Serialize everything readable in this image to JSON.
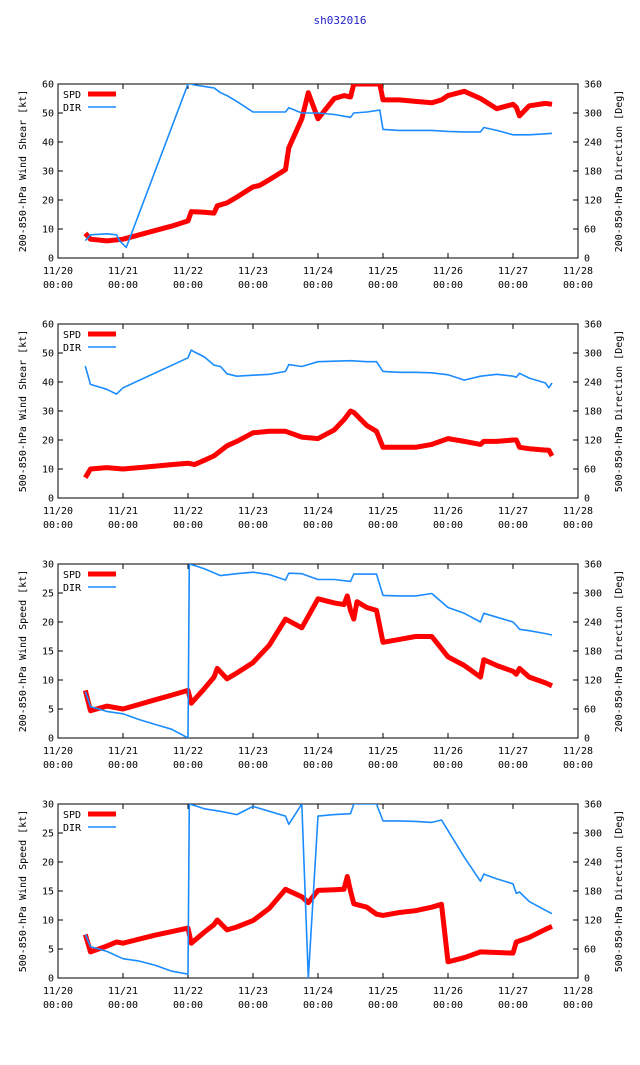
{
  "title": "sh032016",
  "colors": {
    "spd": "#ff0000",
    "dir": "#1a8cff",
    "title": "#2222cc"
  },
  "chart_data": [
    {
      "type": "line",
      "ylabel": "200-850-hPa Wind Shear [kt]",
      "y2label": "200-850-hPa Direction [Deg]",
      "ylim": [
        0,
        60
      ],
      "yticks": [
        0,
        10,
        20,
        30,
        40,
        50,
        60
      ],
      "y2lim": [
        0,
        360
      ],
      "y2ticks": [
        0,
        60,
        120,
        180,
        240,
        300,
        360
      ],
      "xlim": [
        0,
        8
      ],
      "xticks": [
        {
          "d": "11/20",
          "t": "00:00"
        },
        {
          "d": "11/21",
          "t": "00:00"
        },
        {
          "d": "11/22",
          "t": "00:00"
        },
        {
          "d": "11/23",
          "t": "00:00"
        },
        {
          "d": "11/24",
          "t": "00:00"
        },
        {
          "d": "11/25",
          "t": "00:00"
        },
        {
          "d": "11/26",
          "t": "00:00"
        },
        {
          "d": "11/27",
          "t": "00:00"
        },
        {
          "d": "11/28",
          "t": "00:00"
        }
      ],
      "legend": [
        "SPD",
        "DIR"
      ],
      "series": [
        {
          "name": "SPD",
          "axis": "left",
          "x": [
            0.42,
            0.5,
            0.75,
            1.0,
            1.25,
            1.5,
            1.75,
            2.0,
            2.05,
            2.25,
            2.4,
            2.45,
            2.6,
            2.75,
            3.0,
            3.1,
            3.25,
            3.5,
            3.55,
            3.75,
            3.85,
            4.0,
            4.25,
            4.4,
            4.5,
            4.55,
            4.6,
            4.95,
            5.0,
            5.25,
            5.5,
            5.75,
            5.9,
            6.0,
            6.25,
            6.5,
            6.75,
            7.0,
            7.05,
            7.1,
            7.25,
            7.5,
            7.6
          ],
          "values": [
            8.5,
            6.5,
            5.9,
            6.5,
            8,
            9.5,
            11,
            12.8,
            16,
            15.8,
            15.5,
            18,
            19,
            21,
            24.5,
            25,
            27,
            30.5,
            38,
            48,
            57,
            48,
            55,
            56,
            55.5,
            60,
            60,
            60,
            54.5,
            54.5,
            54,
            53.5,
            54.5,
            56,
            57.5,
            55,
            51.5,
            53,
            52,
            49,
            52.5,
            53.3,
            53
          ]
        },
        {
          "name": "DIR",
          "axis": "right",
          "x": [
            0.42,
            0.5,
            0.75,
            0.9,
            0.95,
            1.05,
            2.0,
            2.05,
            2.1,
            2.4,
            2.5,
            2.6,
            2.75,
            3.0,
            3.25,
            3.5,
            3.55,
            3.75,
            4.0,
            4.25,
            4.5,
            4.55,
            4.75,
            4.95,
            5.0,
            5.25,
            5.5,
            5.75,
            6.0,
            6.25,
            6.5,
            6.55,
            6.75,
            7.0,
            7.25,
            7.5,
            7.6
          ],
          "values": [
            36,
            48,
            50,
            48,
            35,
            22,
            360,
            360,
            358,
            352,
            342,
            336,
            324,
            302,
            302,
            302,
            311,
            300,
            300,
            297,
            291,
            300,
            302,
            306,
            266,
            264,
            264,
            264,
            262,
            261,
            261,
            270,
            264,
            255,
            255,
            257,
            258
          ]
        }
      ]
    },
    {
      "type": "line",
      "ylabel": "500-850-hPa Wind Shear [kt]",
      "y2label": "500-850-hPa Direction [Deg]",
      "ylim": [
        0,
        60
      ],
      "yticks": [
        0,
        10,
        20,
        30,
        40,
        50,
        60
      ],
      "y2lim": [
        0,
        360
      ],
      "y2ticks": [
        0,
        60,
        120,
        180,
        240,
        300,
        360
      ],
      "xlim": [
        0,
        8
      ],
      "xticks": [
        {
          "d": "11/20",
          "t": "00:00"
        },
        {
          "d": "11/21",
          "t": "00:00"
        },
        {
          "d": "11/22",
          "t": "00:00"
        },
        {
          "d": "11/23",
          "t": "00:00"
        },
        {
          "d": "11/24",
          "t": "00:00"
        },
        {
          "d": "11/25",
          "t": "00:00"
        },
        {
          "d": "11/26",
          "t": "00:00"
        },
        {
          "d": "11/27",
          "t": "00:00"
        },
        {
          "d": "11/28",
          "t": "00:00"
        }
      ],
      "legend": [
        "SPD",
        "DIR"
      ],
      "series": [
        {
          "name": "SPD",
          "axis": "left",
          "x": [
            0.42,
            0.5,
            0.75,
            1.0,
            1.25,
            1.5,
            1.75,
            2.0,
            2.1,
            2.25,
            2.4,
            2.6,
            2.75,
            3.0,
            3.25,
            3.5,
            3.75,
            4.0,
            4.25,
            4.4,
            4.5,
            4.55,
            4.75,
            4.9,
            5.0,
            5.25,
            5.5,
            5.75,
            6.0,
            6.25,
            6.5,
            6.55,
            6.75,
            7.0,
            7.05,
            7.1,
            7.25,
            7.5,
            7.55,
            7.6
          ],
          "values": [
            7,
            10,
            10.5,
            10,
            10.5,
            11,
            11.5,
            12,
            11.5,
            13,
            14.5,
            18,
            19.5,
            22.5,
            23,
            23,
            21,
            20.5,
            23.5,
            27,
            30,
            29.5,
            25,
            23,
            17.5,
            17.5,
            17.5,
            18.5,
            20.5,
            19.5,
            18.5,
            19.5,
            19.5,
            20,
            20,
            17.5,
            17,
            16.5,
            16.5,
            14.5
          ]
        },
        {
          "name": "DIR",
          "axis": "right",
          "x": [
            0.42,
            0.5,
            0.75,
            0.9,
            1.0,
            2.0,
            2.05,
            2.1,
            2.25,
            2.4,
            2.5,
            2.6,
            2.75,
            3.0,
            3.25,
            3.5,
            3.55,
            3.75,
            4.0,
            4.25,
            4.5,
            4.75,
            4.9,
            5.0,
            5.25,
            5.5,
            5.75,
            6.0,
            6.25,
            6.5,
            6.75,
            7.0,
            7.05,
            7.1,
            7.25,
            7.5,
            7.55,
            7.6
          ],
          "values": [
            273,
            235,
            225,
            215,
            228,
            290,
            306,
            302,
            292,
            275,
            272,
            257,
            252,
            254,
            256,
            262,
            276,
            272,
            282,
            283,
            284,
            282,
            282,
            262,
            260,
            260,
            259,
            255,
            244,
            252,
            256,
            252,
            250,
            258,
            248,
            238,
            228,
            238
          ]
        }
      ]
    },
    {
      "type": "line",
      "ylabel": "200-850-hPa Wind Speed [kt]",
      "y2label": "200-850-hPa Direction [Deg]",
      "ylim": [
        0,
        30
      ],
      "yticks": [
        0,
        5,
        10,
        15,
        20,
        25,
        30
      ],
      "y2lim": [
        0,
        360
      ],
      "y2ticks": [
        0,
        60,
        120,
        180,
        240,
        300,
        360
      ],
      "xlim": [
        0,
        8
      ],
      "xticks": [
        {
          "d": "11/20",
          "t": "00:00"
        },
        {
          "d": "11/21",
          "t": "00:00"
        },
        {
          "d": "11/22",
          "t": "00:00"
        },
        {
          "d": "11/23",
          "t": "00:00"
        },
        {
          "d": "11/24",
          "t": "00:00"
        },
        {
          "d": "11/25",
          "t": "00:00"
        },
        {
          "d": "11/26",
          "t": "00:00"
        },
        {
          "d": "11/27",
          "t": "00:00"
        },
        {
          "d": "11/28",
          "t": "00:00"
        }
      ],
      "legend": [
        "SPD",
        "DIR"
      ],
      "series": [
        {
          "name": "SPD",
          "axis": "left",
          "x": [
            0.42,
            0.5,
            0.75,
            1.0,
            1.25,
            1.5,
            1.75,
            2.0,
            2.05,
            2.25,
            2.4,
            2.45,
            2.6,
            2.75,
            3.0,
            3.25,
            3.5,
            3.75,
            4.0,
            4.25,
            4.4,
            4.45,
            4.5,
            4.55,
            4.6,
            4.75,
            4.9,
            5.0,
            5.25,
            5.5,
            5.75,
            6.0,
            6.25,
            6.5,
            6.55,
            6.75,
            7.0,
            7.05,
            7.1,
            7.25,
            7.5,
            7.6
          ],
          "values": [
            8.2,
            4.7,
            5.5,
            5,
            5.8,
            6.6,
            7.4,
            8.2,
            6,
            8.5,
            10.5,
            12,
            10.2,
            11.2,
            13,
            16,
            20.5,
            19,
            24,
            23.3,
            23,
            24.5,
            22,
            20.5,
            23.5,
            22.5,
            22,
            16.5,
            17,
            17.5,
            17.5,
            14,
            12.5,
            10.5,
            13.5,
            12.5,
            11.5,
            11,
            12,
            10.5,
            9.5,
            9
          ]
        },
        {
          "name": "DIR",
          "axis": "right",
          "x": [
            0.42,
            0.5,
            0.75,
            1.0,
            1.25,
            1.5,
            1.75,
            2.0,
            2.02,
            2.1,
            2.25,
            2.5,
            2.75,
            3.0,
            3.25,
            3.5,
            3.55,
            3.75,
            4.0,
            4.25,
            4.5,
            4.55,
            4.75,
            4.9,
            5.0,
            5.25,
            5.5,
            5.75,
            6.0,
            6.25,
            6.5,
            6.55,
            6.75,
            7.0,
            7.05,
            7.1,
            7.25,
            7.5,
            7.6
          ],
          "values": [
            96,
            65,
            55,
            50,
            38,
            28,
            18,
            0,
            360,
            357,
            350,
            336,
            340,
            343,
            338,
            327,
            341,
            340,
            328,
            328,
            324,
            339,
            339,
            339,
            295,
            294,
            294,
            299,
            270,
            258,
            240,
            258,
            250,
            240,
            233,
            225,
            222,
            216,
            213
          ]
        }
      ]
    },
    {
      "type": "line",
      "ylabel": "500-850-hPa Wind Speed [kt]",
      "y2label": "500-850-hPa Direction [Deg]",
      "ylim": [
        0,
        30
      ],
      "yticks": [
        0,
        5,
        10,
        15,
        20,
        25,
        30
      ],
      "y2lim": [
        0,
        360
      ],
      "y2ticks": [
        0,
        60,
        120,
        180,
        240,
        300,
        360
      ],
      "xlim": [
        0,
        8
      ],
      "xticks": [
        {
          "d": "11/20",
          "t": "00:00"
        },
        {
          "d": "11/21",
          "t": "00:00"
        },
        {
          "d": "11/22",
          "t": "00:00"
        },
        {
          "d": "11/23",
          "t": "00:00"
        },
        {
          "d": "11/24",
          "t": "00:00"
        },
        {
          "d": "11/25",
          "t": "00:00"
        },
        {
          "d": "11/26",
          "t": "00:00"
        },
        {
          "d": "11/27",
          "t": "00:00"
        },
        {
          "d": "11/28",
          "t": "00:00"
        }
      ],
      "legend": [
        "SPD",
        "DIR"
      ],
      "series": [
        {
          "name": "SPD",
          "axis": "left",
          "x": [
            0.42,
            0.5,
            0.75,
            0.9,
            1.0,
            1.25,
            1.5,
            1.75,
            2.0,
            2.05,
            2.25,
            2.4,
            2.45,
            2.6,
            2.75,
            3.0,
            3.25,
            3.5,
            3.75,
            3.85,
            4.0,
            4.25,
            4.4,
            4.45,
            4.5,
            4.55,
            4.75,
            4.9,
            5.0,
            5.25,
            5.5,
            5.75,
            5.9,
            6.0,
            6.25,
            6.5,
            6.75,
            7.0,
            7.05,
            7.25,
            7.5,
            7.6
          ],
          "values": [
            7.5,
            4.5,
            5.5,
            6.2,
            6,
            6.7,
            7.4,
            8,
            8.6,
            6,
            7.9,
            9.2,
            10,
            8.3,
            8.8,
            9.9,
            12,
            15.3,
            14,
            13,
            15.1,
            15.2,
            15.3,
            17.5,
            15,
            12.8,
            12.2,
            11,
            10.8,
            11.3,
            11.6,
            12.2,
            12.7,
            2.8,
            3.5,
            4.5,
            4.4,
            4.3,
            6.2,
            7,
            8.4,
            8.9
          ]
        },
        {
          "name": "DIR",
          "axis": "right",
          "x": [
            0.42,
            0.5,
            0.75,
            1.0,
            1.25,
            1.5,
            1.75,
            2.0,
            2.02,
            2.1,
            2.25,
            2.5,
            2.75,
            3.0,
            3.25,
            3.5,
            3.55,
            3.75,
            3.85,
            4.0,
            4.25,
            4.5,
            4.55,
            4.75,
            4.9,
            5.0,
            5.25,
            5.5,
            5.75,
            5.9,
            6.0,
            6.25,
            6.5,
            6.55,
            6.75,
            7.0,
            7.05,
            7.1,
            7.25,
            7.5,
            7.6
          ],
          "values": [
            90,
            65,
            55,
            40,
            35,
            26,
            14,
            8,
            360,
            357,
            350,
            345,
            338,
            355,
            345,
            335,
            318,
            360,
            0,
            335,
            338,
            340,
            360,
            360,
            360,
            325,
            325,
            324,
            322,
            327,
            305,
            250,
            200,
            215,
            205,
            195,
            175,
            178,
            158,
            140,
            133
          ]
        }
      ]
    }
  ]
}
